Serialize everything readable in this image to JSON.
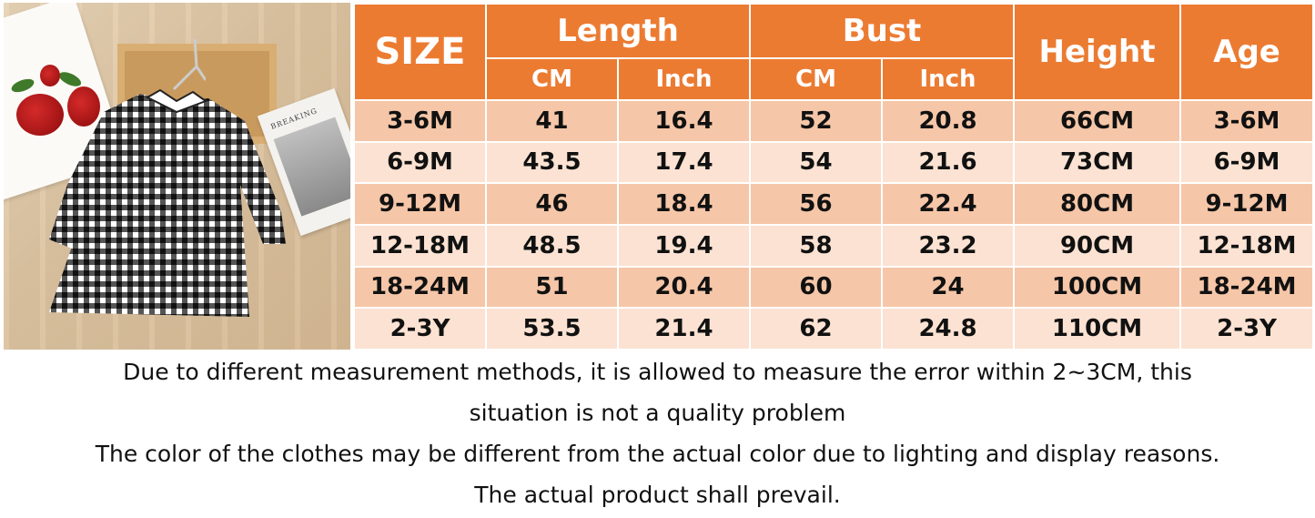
{
  "photo": {
    "booklet_text": "BREAKING"
  },
  "table": {
    "headers": {
      "size": "SIZE",
      "length": "Length",
      "bust": "Bust",
      "height": "Height",
      "age": "Age",
      "length_cm": "CM",
      "length_inch": "Inch",
      "bust_cm": "CM",
      "bust_inch": "Inch"
    },
    "rows": [
      {
        "size": "3-6M",
        "length_cm": "41",
        "length_inch": "16.4",
        "bust_cm": "52",
        "bust_inch": "20.8",
        "height": "66CM",
        "age": "3-6M"
      },
      {
        "size": "6-9M",
        "length_cm": "43.5",
        "length_inch": "17.4",
        "bust_cm": "54",
        "bust_inch": "21.6",
        "height": "73CM",
        "age": "6-9M"
      },
      {
        "size": "9-12M",
        "length_cm": "46",
        "length_inch": "18.4",
        "bust_cm": "56",
        "bust_inch": "22.4",
        "height": "80CM",
        "age": "9-12M"
      },
      {
        "size": "12-18M",
        "length_cm": "48.5",
        "length_inch": "19.4",
        "bust_cm": "58",
        "bust_inch": "23.2",
        "height": "90CM",
        "age": "12-18M"
      },
      {
        "size": "18-24M",
        "length_cm": "51",
        "length_inch": "20.4",
        "bust_cm": "60",
        "bust_inch": "24",
        "height": "100CM",
        "age": "18-24M"
      },
      {
        "size": "2-3Y",
        "length_cm": "53.5",
        "length_inch": "21.4",
        "bust_cm": "62",
        "bust_inch": "24.8",
        "height": "110CM",
        "age": "2-3Y"
      }
    ]
  },
  "notes": {
    "line1": "Due to different measurement methods, it is allowed to measure the error within 2~3CM, this",
    "line2": "situation is not a quality problem",
    "line3": "The color of the clothes may be different from the actual color due to lighting and display reasons.",
    "line4": "The actual product shall prevail."
  },
  "colors": {
    "header_bg": "#ec7b32",
    "row_dark": "#f5c6a8",
    "row_light": "#fbe2d2"
  }
}
